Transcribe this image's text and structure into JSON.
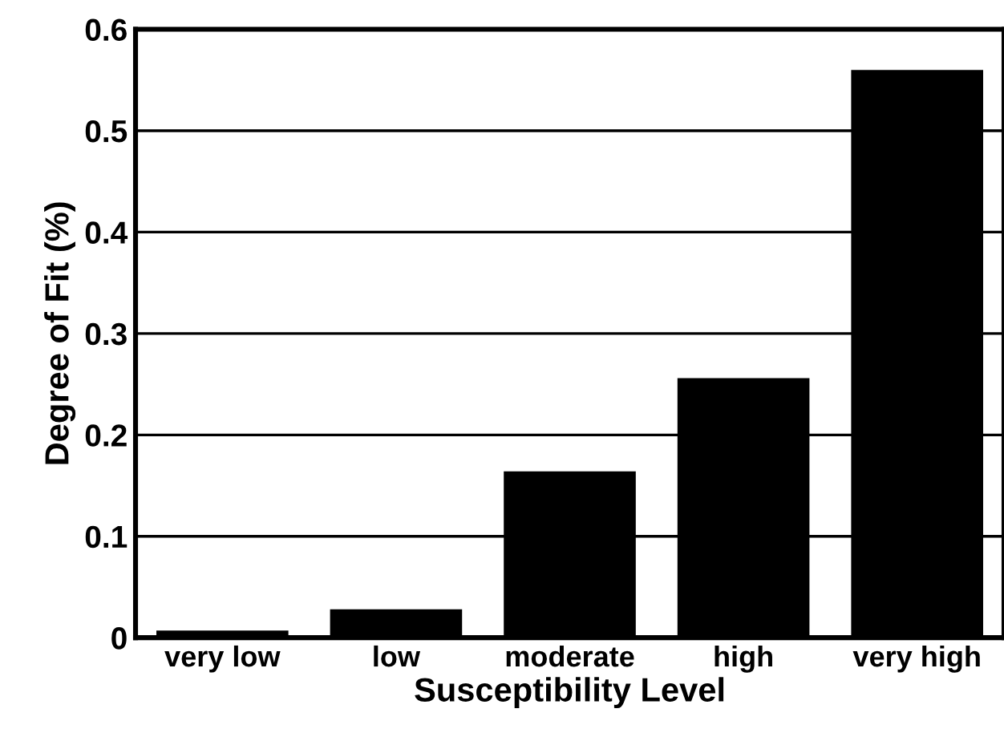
{
  "chart_data": {
    "type": "bar",
    "xlabel": "Susceptibility Level",
    "ylabel": "Degree of Fit (%)",
    "categories": [
      "very low",
      "low",
      "moderate",
      "high",
      "very high"
    ],
    "values": [
      0.007,
      0.028,
      0.164,
      0.256,
      0.56
    ],
    "color": "#000000",
    "ylim": [
      0,
      0.6
    ],
    "yticks": [
      {
        "value": 0,
        "label": "0"
      },
      0.1,
      0.2,
      0.3,
      0.4,
      0.5,
      0.6
    ],
    "grid": "y"
  }
}
